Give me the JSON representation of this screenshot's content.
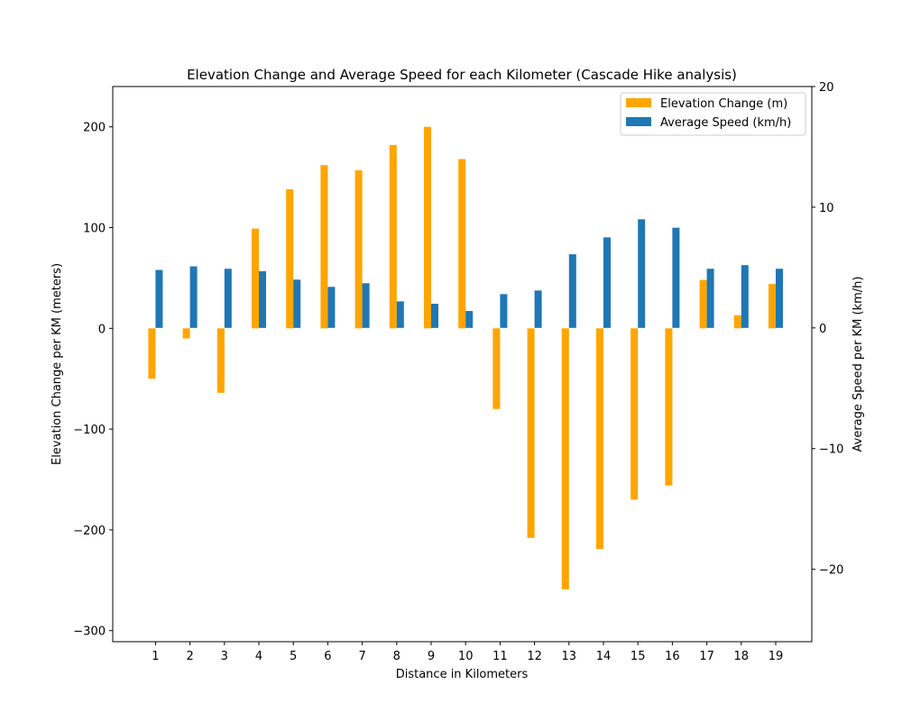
{
  "chart_data": {
    "type": "bar",
    "title": "Elevation Change and Average Speed for each Kilometer (Cascade Hike analysis)",
    "xlabel": "Distance in Kilometers",
    "ylabel_left": "Elevation Change per KM (meters)",
    "ylabel_right": "Average Speed per KM (km/h)",
    "categories": [
      "1",
      "2",
      "3",
      "4",
      "5",
      "6",
      "7",
      "8",
      "9",
      "10",
      "11",
      "12",
      "13",
      "14",
      "15",
      "16",
      "17",
      "18",
      "19"
    ],
    "ylim_left": [
      -311,
      240
    ],
    "ylim_right": [
      -26,
      20
    ],
    "yticks_left": [
      200,
      100,
      0,
      -100,
      -200,
      -300
    ],
    "yticks_left_labels": [
      "200",
      "100",
      "0",
      "−100",
      "−200",
      "−300"
    ],
    "yticks_right": [
      20,
      10,
      0,
      -10,
      -20
    ],
    "yticks_right_labels": [
      "20",
      "10",
      "0",
      "−10",
      "−20"
    ],
    "legend_position": "top-right",
    "grid": false,
    "series": [
      {
        "name": "Elevation Change (m)",
        "axis": "left",
        "color": "#FFA500",
        "values": [
          -50,
          -10,
          -64,
          99,
          138,
          162,
          157,
          182,
          200,
          168,
          -80,
          -208,
          -259,
          -219,
          -170,
          -156,
          48,
          13,
          44
        ]
      },
      {
        "name": "Average Speed (km/h)",
        "axis": "right",
        "color": "#1F77B4",
        "values": [
          4.8,
          5.1,
          4.9,
          4.7,
          4.0,
          3.4,
          3.7,
          2.2,
          2.0,
          1.4,
          2.8,
          3.1,
          6.1,
          7.5,
          9.0,
          8.3,
          4.9,
          5.2,
          4.9
        ]
      }
    ]
  }
}
